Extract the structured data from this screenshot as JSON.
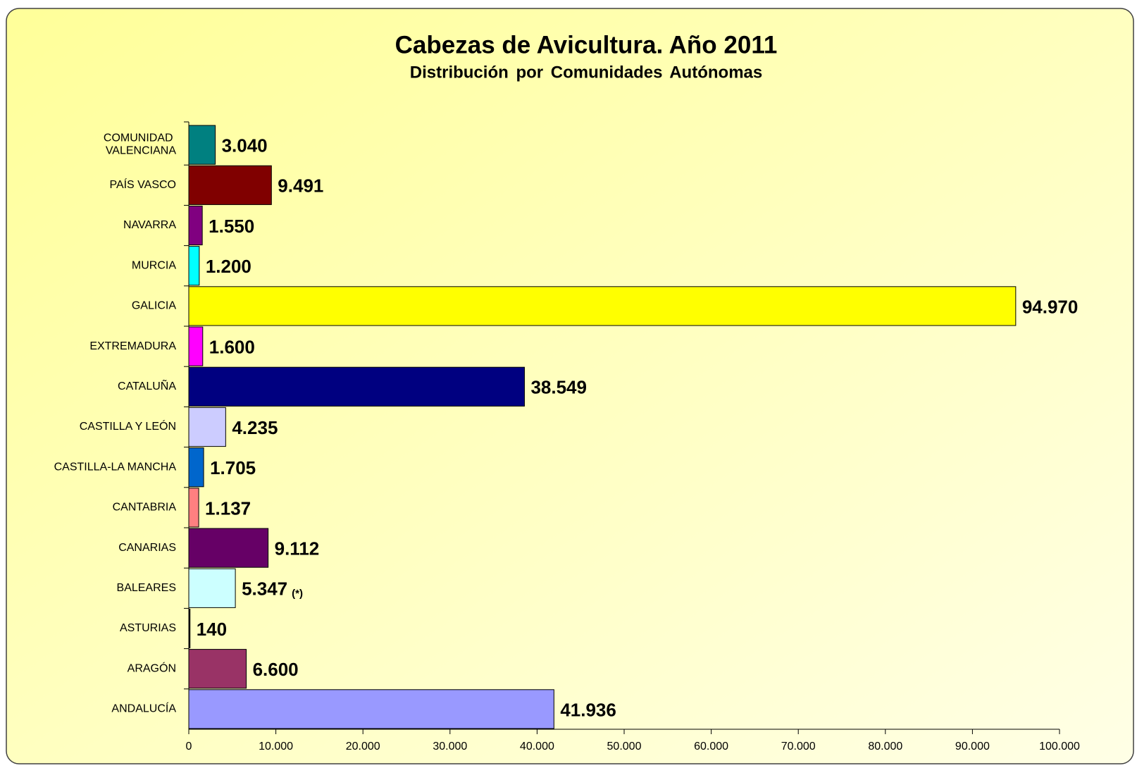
{
  "chart_data": {
    "type": "barh",
    "title": "Cabezas de Avicultura. Año 2011",
    "subtitle": "Distribución por Comunidades Autónomas",
    "categories": [
      "COMUNIDAD VALENCIANA",
      "PAÍS VASCO",
      "NAVARRA",
      "MURCIA",
      "GALICIA",
      "EXTREMADURA",
      "CATALUÑA",
      "CASTILLA Y LEÓN",
      "CASTILLA-LA MANCHA",
      "CANTABRIA",
      "CANARIAS",
      "BALEARES",
      "ASTURIAS",
      "ARAGÓN",
      "ANDALUCÍA"
    ],
    "values": [
      3040,
      9491,
      1550,
      1200,
      94970,
      1600,
      38549,
      4235,
      1705,
      1137,
      9112,
      5347,
      140,
      6600,
      41936
    ],
    "value_labels": [
      "3.040",
      "9.491",
      "1.550",
      "1.200",
      "94.970",
      "1.600",
      "38.549",
      "4.235",
      "1.705",
      "1.137",
      "9.112",
      "5.347",
      "140",
      "6.600",
      "41.936"
    ],
    "colors": [
      "#008080",
      "#800000",
      "#800080",
      "#00ffff",
      "#ffff00",
      "#ff00ff",
      "#000080",
      "#ccccff",
      "#0066cc",
      "#ff8080",
      "#660066",
      "#ccffff",
      "#222222",
      "#993366",
      "#9999ff"
    ],
    "annotation": "(*)",
    "xlim": [
      0,
      100000
    ],
    "xticks": [
      0,
      {
        "value": 10000,
        "label": "10.000"
      },
      {
        "value": 20000,
        "label": "20.000"
      },
      {
        "value": 30000,
        "label": "30.000"
      },
      {
        "value": 40000,
        "label": "40.000"
      },
      {
        "value": 50000,
        "label": "50.000"
      },
      {
        "value": 60000,
        "label": "60.000"
      },
      {
        "value": 70000,
        "label": "70.000"
      },
      {
        "value": 80000,
        "label": "80.000"
      },
      {
        "value": 90000,
        "label": "90.000"
      },
      {
        "value": 100000,
        "label": "100.000"
      }
    ]
  }
}
